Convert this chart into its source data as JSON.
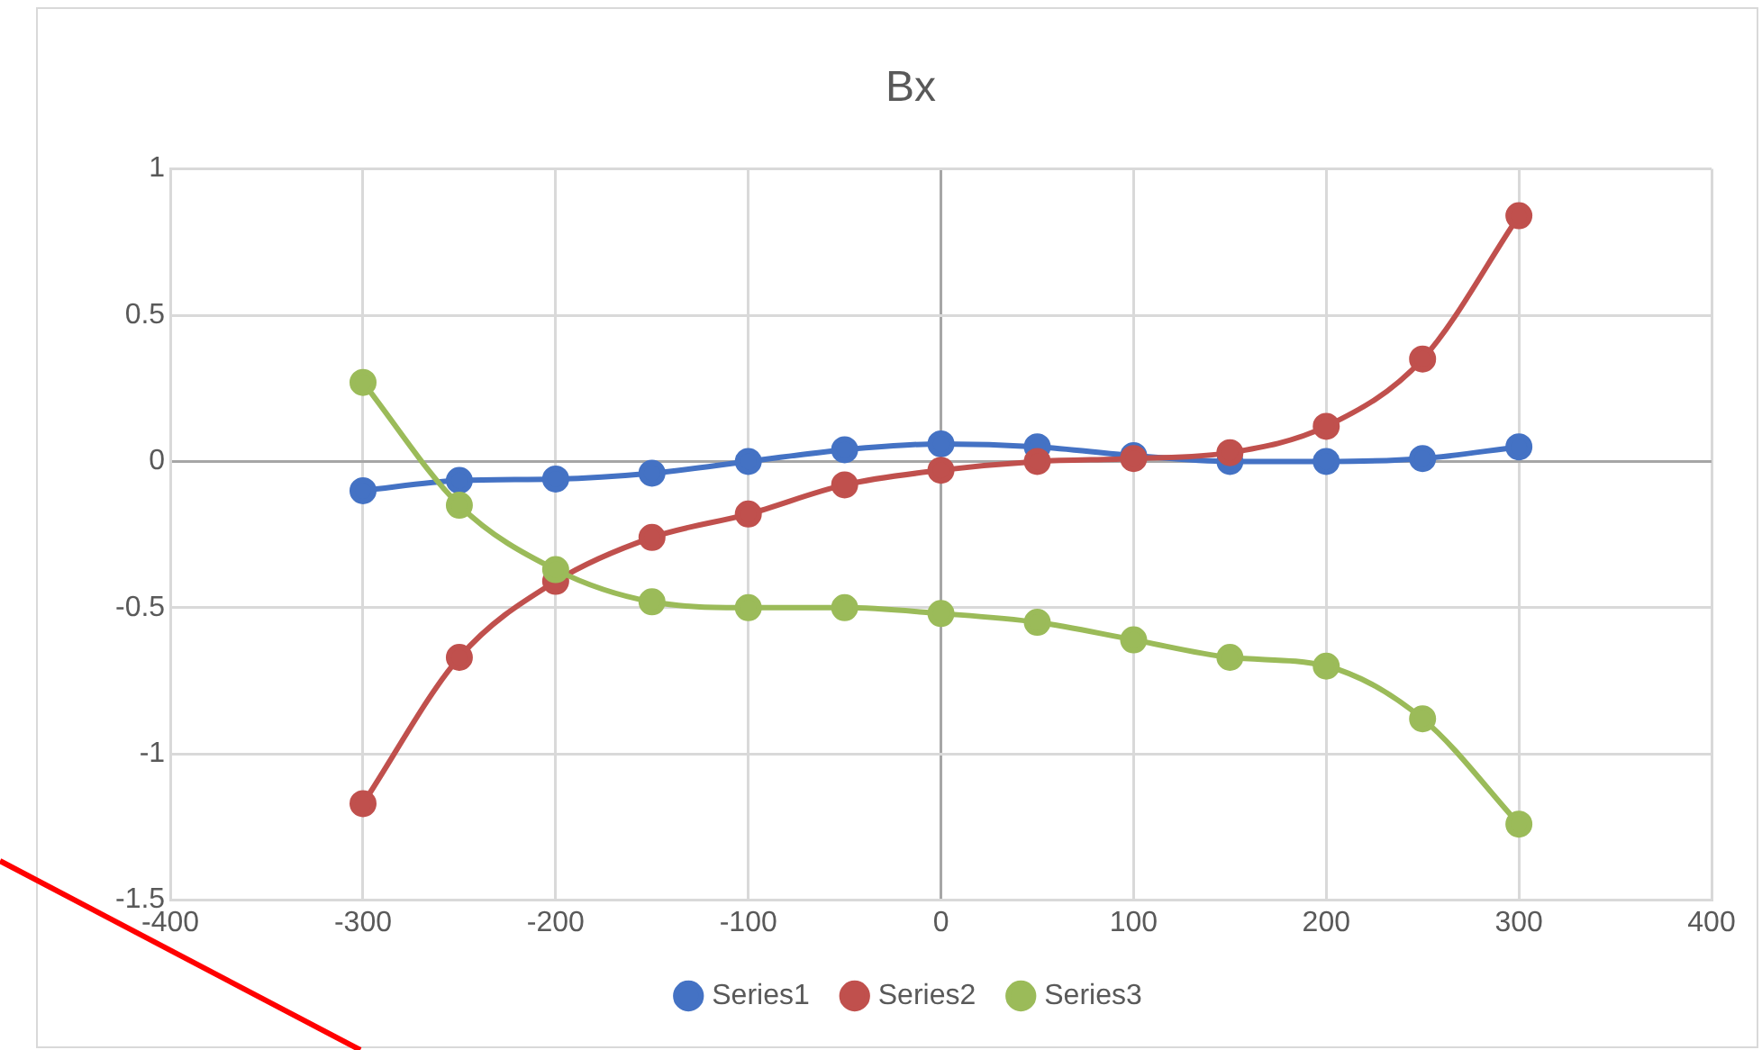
{
  "chart_data": {
    "type": "line",
    "title": "Bx",
    "x": [
      -300,
      -250,
      -200,
      -150,
      -100,
      -50,
      0,
      50,
      100,
      150,
      200,
      250,
      300
    ],
    "series": [
      {
        "name": "Series1",
        "color": "#4472c4",
        "values": [
          -0.1,
          -0.065,
          -0.06,
          -0.04,
          0,
          0.04,
          0.06,
          0.05,
          0.02,
          0,
          0,
          0.01,
          0.05
        ]
      },
      {
        "name": "Series2",
        "color": "#c0504d",
        "values": [
          -1.17,
          -0.67,
          -0.41,
          -0.26,
          -0.18,
          -0.08,
          -0.03,
          0,
          0.01,
          0.03,
          0.12,
          0.35,
          0.84
        ]
      },
      {
        "name": "Series3",
        "color": "#9bbb59",
        "values": [
          0.27,
          -0.15,
          -0.37,
          -0.48,
          -0.5,
          -0.5,
          -0.52,
          -0.55,
          -0.61,
          -0.67,
          -0.7,
          -0.88,
          -1.24
        ]
      }
    ],
    "xlim": [
      -400,
      400
    ],
    "xticks": [
      -400,
      -300,
      -200,
      -100,
      0,
      100,
      200,
      300,
      400
    ],
    "ylim": [
      -1.5,
      1
    ],
    "yticks": [
      -1.5,
      -1,
      -0.5,
      0,
      0.5,
      1
    ],
    "grid": true,
    "legend": "bottom",
    "marker": "circle",
    "line_style": "solid"
  }
}
